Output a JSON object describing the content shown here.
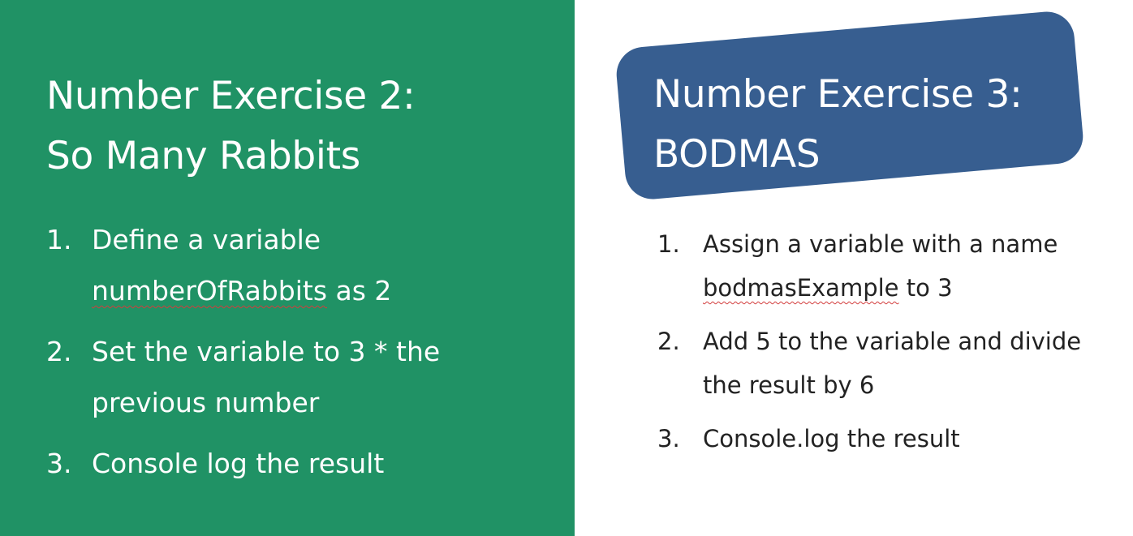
{
  "left": {
    "title_line1": "Number Exercise 2:",
    "title_line2": "So Many Rabbits",
    "items": [
      {
        "num": "1.",
        "line1": "Define a variable",
        "code": "numberOfRabbits",
        "rest": " as 2"
      },
      {
        "num": "2.",
        "line1": "Set the variable to 3 * the",
        "line2": "previous number"
      },
      {
        "num": "3.",
        "line1": "Console log the result"
      }
    ]
  },
  "right": {
    "title_line1": "Number Exercise 3:",
    "title_line2": "BODMAS",
    "items": [
      {
        "num": "1.",
        "line1": "Assign a variable with a name",
        "code": "bodmasExample",
        "rest": " to 3"
      },
      {
        "num": "2.",
        "line1": "Add 5 to the variable and divide",
        "line2": "the result by 6"
      },
      {
        "num": "3.",
        "line1": "Console.log the result"
      }
    ]
  },
  "colors": {
    "left_background": "#209265",
    "title_box": "#375e90",
    "spellcheck_underline": "#d23c3c"
  }
}
